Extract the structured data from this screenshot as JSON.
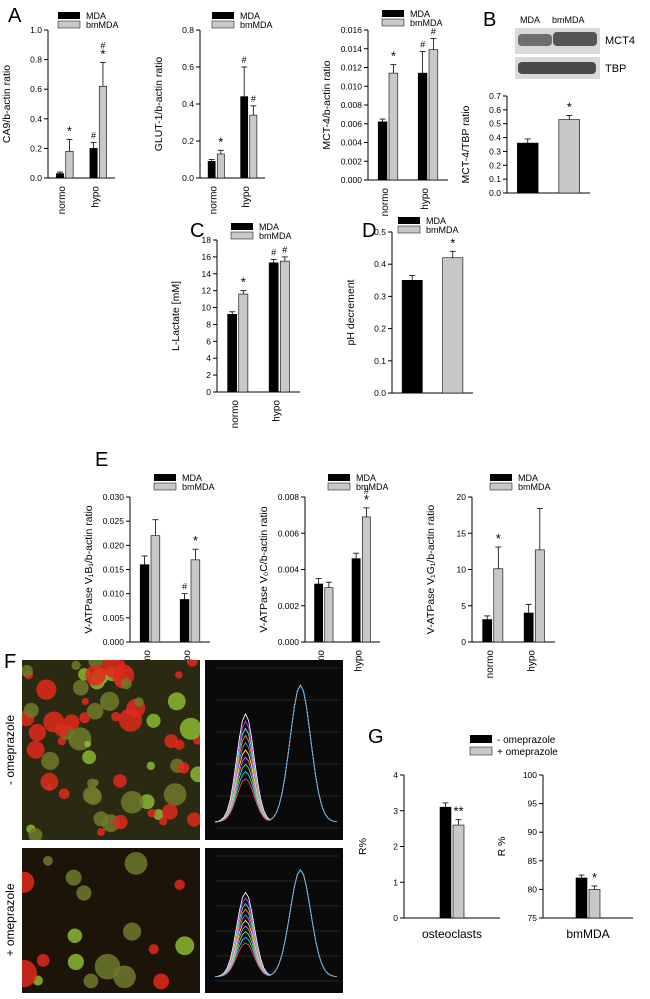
{
  "colors": {
    "mda": "#000000",
    "bmmda": "#c8c8c8",
    "axis": "#000000",
    "micro_bg": "#1a1a10",
    "micro_red": "#e0291c",
    "micro_green": "#8ab830"
  },
  "panel_labels": {
    "A": "A",
    "B": "B",
    "C": "C",
    "D": "D",
    "E": "E",
    "F": "F",
    "G": "G"
  },
  "legend": {
    "mda": "MDA",
    "bmmda": "bmMDA",
    "minus_omeprazole": "- omeprazole",
    "plus_omeprazole": "+ omeprazole"
  },
  "blot": {
    "col_mda": "MDA",
    "col_bmmda": "bmMDA",
    "row1": "MCT4",
    "row2": "TBP"
  },
  "panel_f": {
    "row1": "- omeprazole",
    "row2": "+ omeprazole"
  },
  "chart_data": [
    {
      "id": "A1",
      "type": "bar",
      "categories": [
        "normo",
        "hypo"
      ],
      "ylabel": "CA9/b-actin ratio",
      "ylim": [
        0,
        1.0
      ],
      "yticks": [
        "0.0",
        "0.2",
        "0.4",
        "0.6",
        "0.8",
        "1.0"
      ],
      "series": [
        {
          "name": "MDA",
          "values": [
            0.03,
            0.2
          ],
          "errors": [
            0.01,
            0.04
          ]
        },
        {
          "name": "bmMDA",
          "values": [
            0.18,
            0.62
          ],
          "errors": [
            0.08,
            0.16
          ]
        }
      ],
      "annotations": [
        [
          "",
          "*"
        ],
        [
          "#",
          "#\n*"
        ]
      ]
    },
    {
      "id": "A2",
      "type": "bar",
      "categories": [
        "normo",
        "hypo"
      ],
      "ylabel": "GLUT-1/b-actin ratio",
      "ylim": [
        0,
        0.8
      ],
      "yticks": [
        "0.0",
        "0.2",
        "0.4",
        "0.6",
        "0.8"
      ],
      "series": [
        {
          "name": "MDA",
          "values": [
            0.09,
            0.44
          ],
          "errors": [
            0.01,
            0.16
          ]
        },
        {
          "name": "bmMDA",
          "values": [
            0.13,
            0.34
          ],
          "errors": [
            0.02,
            0.05
          ]
        }
      ],
      "annotations": [
        [
          "",
          "*"
        ],
        [
          "#",
          "#"
        ]
      ]
    },
    {
      "id": "A3",
      "type": "bar",
      "categories": [
        "normo",
        "hypo"
      ],
      "ylabel": "MCT-4/b-actin ratio",
      "ylim": [
        0,
        0.016
      ],
      "yticks": [
        "0.000",
        "0.002",
        "0.004",
        "0.006",
        "0.008",
        "0.010",
        "0.012",
        "0.014",
        "0.016"
      ],
      "series": [
        {
          "name": "MDA",
          "values": [
            0.0062,
            0.0114
          ],
          "errors": [
            0.0003,
            0.0023
          ]
        },
        {
          "name": "bmMDA",
          "values": [
            0.0114,
            0.0139
          ],
          "errors": [
            0.0009,
            0.0012
          ]
        }
      ],
      "annotations": [
        [
          "",
          "*"
        ],
        [
          "#",
          "#"
        ]
      ]
    },
    {
      "id": "B",
      "type": "bar",
      "categories": [
        "MDA",
        "bmMDA"
      ],
      "ylabel": "MCT-4/TBP ratio",
      "ylim": [
        0,
        0.7
      ],
      "yticks": [
        "0.0",
        "0.1",
        "0.2",
        "0.3",
        "0.4",
        "0.5",
        "0.6",
        "0.7"
      ],
      "values": [
        0.36,
        0.53
      ],
      "errors": [
        0.03,
        0.03
      ],
      "annotations": [
        "",
        "*"
      ]
    },
    {
      "id": "C",
      "type": "bar",
      "categories": [
        "normo",
        "hypo"
      ],
      "ylabel": "L-Lactate [mM]",
      "ylim": [
        0,
        18
      ],
      "yticks": [
        "0",
        "2",
        "4",
        "6",
        "8",
        "10",
        "12",
        "14",
        "16",
        "18"
      ],
      "series": [
        {
          "name": "MDA",
          "values": [
            9.2,
            15.3
          ],
          "errors": [
            0.3,
            0.4
          ]
        },
        {
          "name": "bmMDA",
          "values": [
            11.6,
            15.5
          ],
          "errors": [
            0.4,
            0.5
          ]
        }
      ],
      "annotations": [
        [
          "",
          "*"
        ],
        [
          "#",
          "#"
        ]
      ]
    },
    {
      "id": "D",
      "type": "bar",
      "categories": [
        "MDA",
        "bmMDA"
      ],
      "ylabel": "pH decrement",
      "ylim": [
        0,
        0.5
      ],
      "yticks": [
        "0.0",
        "0.1",
        "0.2",
        "0.3",
        "0.4",
        "0.5"
      ],
      "values": [
        0.35,
        0.42
      ],
      "errors": [
        0.015,
        0.02
      ],
      "annotations": [
        "",
        "*"
      ]
    },
    {
      "id": "E1",
      "type": "bar",
      "categories": [
        "normo",
        "hypo"
      ],
      "ylabel": "V-ATPase V₁B₁/b-actin ratio",
      "ylim": [
        0,
        0.03
      ],
      "yticks": [
        "0.000",
        "0.005",
        "0.010",
        "0.015",
        "0.020",
        "0.025",
        "0.030"
      ],
      "series": [
        {
          "name": "MDA",
          "values": [
            0.016,
            0.0088
          ],
          "errors": [
            0.0018,
            0.0012
          ]
        },
        {
          "name": "bmMDA",
          "values": [
            0.022,
            0.017
          ],
          "errors": [
            0.0033,
            0.0022
          ]
        }
      ],
      "annotations": [
        [
          "",
          ""
        ],
        [
          "#",
          "*"
        ]
      ]
    },
    {
      "id": "E2",
      "type": "bar",
      "categories": [
        "normo",
        "hypo"
      ],
      "ylabel": "V-ATPase V₀C/b-actin ratio",
      "ylim": [
        0,
        0.008
      ],
      "yticks": [
        "0.000",
        "0.002",
        "0.004",
        "0.006",
        "0.008"
      ],
      "series": [
        {
          "name": "MDA",
          "values": [
            0.0032,
            0.0046
          ],
          "errors": [
            0.0003,
            0.0003
          ]
        },
        {
          "name": "bmMDA",
          "values": [
            0.003,
            0.0069
          ],
          "errors": [
            0.0003,
            0.0005
          ]
        }
      ],
      "annotations": [
        [
          "",
          ""
        ],
        [
          "",
          "#\n*"
        ]
      ]
    },
    {
      "id": "E3",
      "type": "bar",
      "categories": [
        "normo",
        "hypo"
      ],
      "ylabel": "V-ATPase V₁G₁/b-actin ratio",
      "ylim": [
        0,
        20
      ],
      "yticks": [
        "0",
        "5",
        "10",
        "15",
        "20"
      ],
      "series": [
        {
          "name": "MDA",
          "values": [
            3.1,
            4.0
          ],
          "errors": [
            0.5,
            1.2
          ]
        },
        {
          "name": "bmMDA",
          "values": [
            10.1,
            12.7
          ],
          "errors": [
            3.0,
            5.7
          ]
        }
      ],
      "annotations": [
        [
          "",
          "*"
        ],
        [
          "",
          ""
        ]
      ]
    },
    {
      "id": "G1",
      "type": "bar",
      "categories": [
        "osteoclasts"
      ],
      "xlabel": "osteoclasts",
      "ylabel": "R%",
      "ylim": [
        0,
        4
      ],
      "yticks": [
        "0",
        "1",
        "2",
        "3",
        "4"
      ],
      "series": [
        {
          "name": "- omeprazole",
          "values": [
            3.1
          ],
          "errors": [
            0.12
          ]
        },
        {
          "name": "+ omeprazole",
          "values": [
            2.6
          ],
          "errors": [
            0.15
          ]
        }
      ],
      "annotations": [
        [
          "",
          "**"
        ]
      ]
    },
    {
      "id": "G2",
      "type": "bar",
      "categories": [
        "bmMDA"
      ],
      "xlabel": "bmMDA",
      "ylabel": "R %",
      "ylim": [
        75,
        100
      ],
      "yticks": [
        "75",
        "80",
        "85",
        "90",
        "95",
        "100"
      ],
      "series": [
        {
          "name": "- omeprazole",
          "values": [
            82
          ],
          "errors": [
            0.5
          ]
        },
        {
          "name": "+ omeprazole",
          "values": [
            80
          ],
          "errors": [
            0.6
          ]
        }
      ],
      "annotations": [
        [
          "",
          "*"
        ]
      ]
    }
  ]
}
